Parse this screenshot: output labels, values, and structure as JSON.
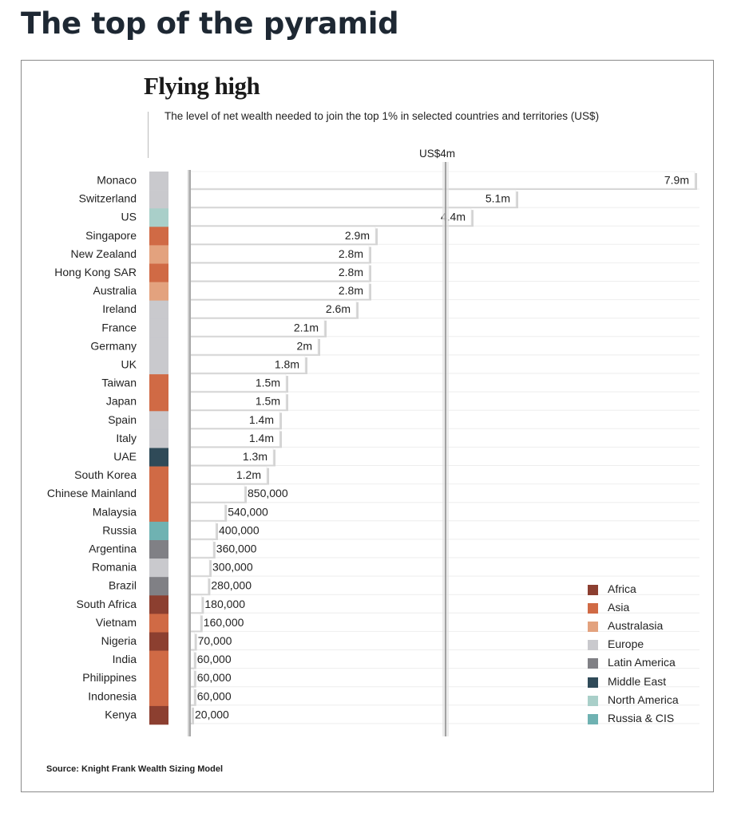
{
  "page": {
    "heading": "The top of the pyramid"
  },
  "chart_data": {
    "type": "bar",
    "orientation": "horizontal",
    "title": "Flying high",
    "subtitle": "The level of net wealth needed to join the top 1% in selected countries and territories (US$)",
    "reference_line": {
      "value": 4000000,
      "label": "US$4m"
    },
    "xlim": [
      0,
      8100000
    ],
    "grid": false,
    "legend_position": "bottom-right",
    "source": "Source: Knight Frank Wealth Sizing Model",
    "regions": [
      {
        "name": "Africa",
        "color": "#8c3f30"
      },
      {
        "name": "Asia",
        "color": "#d06a45"
      },
      {
        "name": "Australasia",
        "color": "#e3a27e"
      },
      {
        "name": "Europe",
        "color": "#c9c9cd"
      },
      {
        "name": "Latin America",
        "color": "#808085"
      },
      {
        "name": "Middle East",
        "color": "#2f4a58"
      },
      {
        "name": "North America",
        "color": "#a9cfc9"
      },
      {
        "name": "Russia & CIS",
        "color": "#6fb2b2"
      }
    ],
    "categories": [
      "Monaco",
      "Switzerland",
      "US",
      "Singapore",
      "New Zealand",
      "Hong Kong SAR",
      "Australia",
      "Ireland",
      "France",
      "Germany",
      "UK",
      "Taiwan",
      "Japan",
      "Spain",
      "Italy",
      "UAE",
      "South Korea",
      "Chinese Mainland",
      "Malaysia",
      "Russia",
      "Argentina",
      "Romania",
      "Brazil",
      "South Africa",
      "Vietnam",
      "Nigeria",
      "India",
      "Philippines",
      "Indonesia",
      "Kenya"
    ],
    "values": [
      7900000,
      5100000,
      4400000,
      2900000,
      2800000,
      2800000,
      2800000,
      2600000,
      2100000,
      2000000,
      1800000,
      1500000,
      1500000,
      1400000,
      1400000,
      1300000,
      1200000,
      850000,
      540000,
      400000,
      360000,
      300000,
      280000,
      180000,
      160000,
      70000,
      60000,
      60000,
      60000,
      20000
    ],
    "value_labels": [
      "7.9m",
      "5.1m",
      "4.4m",
      "2.9m",
      "2.8m",
      "2.8m",
      "2.8m",
      "2.6m",
      "2.1m",
      "2m",
      "1.8m",
      "1.5m",
      "1.5m",
      "1.4m",
      "1.4m",
      "1.3m",
      "1.2m",
      "850,000",
      "540,000",
      "400,000",
      "360,000",
      "300,000",
      "280,000",
      "180,000",
      "160,000",
      "70,000",
      "60,000",
      "60,000",
      "60,000",
      "20,000"
    ],
    "category_regions": [
      "Europe",
      "Europe",
      "North America",
      "Asia",
      "Australasia",
      "Asia",
      "Australasia",
      "Europe",
      "Europe",
      "Europe",
      "Europe",
      "Asia",
      "Asia",
      "Europe",
      "Europe",
      "Middle East",
      "Asia",
      "Asia",
      "Asia",
      "Russia & CIS",
      "Latin America",
      "Europe",
      "Latin America",
      "Africa",
      "Asia",
      "Africa",
      "Asia",
      "Asia",
      "Asia",
      "Africa"
    ]
  }
}
